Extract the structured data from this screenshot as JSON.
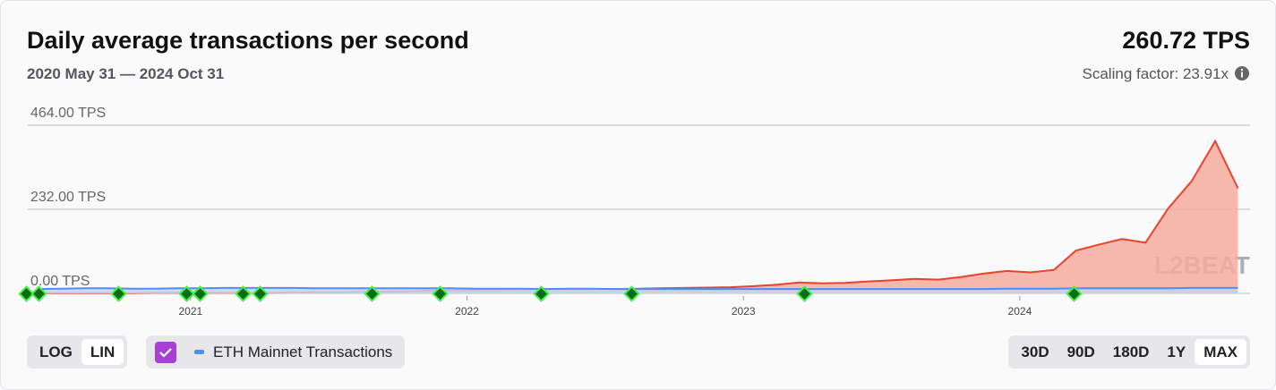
{
  "chart_data": {
    "type": "area",
    "title": "Daily average transactions per second",
    "subtitle": "2020 May 31 — 2024 Oct 31",
    "headline": "260.72 TPS",
    "scaling_label": "Scaling factor: 23.91x",
    "watermark": "L2BEAT",
    "xlim": [
      "2020-05-31",
      "2024-10-31"
    ],
    "xticks": [
      "2021",
      "2022",
      "2023",
      "2024"
    ],
    "ylim": [
      0,
      464
    ],
    "yticks": [
      {
        "value": 0,
        "label": "0.00 TPS"
      },
      {
        "value": 232,
        "label": "232.00 TPS"
      },
      {
        "value": 464,
        "label": "464.00 TPS"
      }
    ],
    "grid": true,
    "x": [
      "2020-06",
      "2020-07",
      "2020-08",
      "2020-09",
      "2020-10",
      "2020-11",
      "2020-12",
      "2021-01",
      "2021-02",
      "2021-03",
      "2021-04",
      "2021-05",
      "2021-06",
      "2021-07",
      "2021-08",
      "2021-09",
      "2021-10",
      "2021-11",
      "2021-12",
      "2022-01",
      "2022-02",
      "2022-03",
      "2022-04",
      "2022-05",
      "2022-06",
      "2022-07",
      "2022-08",
      "2022-09",
      "2022-10",
      "2022-11",
      "2022-12",
      "2023-01",
      "2023-02",
      "2023-03",
      "2023-04",
      "2023-05",
      "2023-06",
      "2023-07",
      "2023-08",
      "2023-09",
      "2023-10",
      "2023-11",
      "2023-12",
      "2024-01",
      "2024-02",
      "2024-03",
      "2024-04",
      "2024-05",
      "2024-06",
      "2024-07",
      "2024-08",
      "2024-09",
      "2024-10"
    ],
    "series": [
      {
        "color": "#e8432b",
        "fill": "#f5aa9e",
        "values": [
          1,
          1,
          1,
          1,
          1,
          2,
          2,
          2,
          2,
          2,
          2,
          3,
          3,
          3,
          4,
          5,
          6,
          8,
          9,
          9,
          10,
          11,
          12,
          11,
          12,
          12,
          13,
          14,
          15,
          16,
          17,
          20,
          24,
          30,
          28,
          29,
          33,
          36,
          40,
          38,
          45,
          55,
          62,
          58,
          65,
          118,
          135,
          150,
          140,
          235,
          310,
          420,
          290
        ]
      },
      {
        "name": "ETH Mainnet Transactions",
        "color": "#4f8ef7",
        "fill": "#c4d3f5",
        "values": [
          12,
          13,
          14,
          14,
          13,
          13,
          14,
          14,
          15,
          15,
          15,
          15,
          14,
          14,
          14,
          14,
          14,
          14,
          14,
          13,
          13,
          13,
          12,
          13,
          13,
          12,
          12,
          12,
          12,
          12,
          12,
          12,
          12,
          12,
          12,
          12,
          12,
          12,
          12,
          12,
          12,
          12,
          13,
          13,
          13,
          14,
          14,
          14,
          14,
          14,
          15,
          15,
          15
        ]
      }
    ]
  },
  "controls": {
    "scale": [
      "LOG",
      "LIN"
    ],
    "active_scale": 1,
    "ranges": [
      "30D",
      "90D",
      "180D",
      "1Y",
      "MAX"
    ],
    "active_range": 4
  }
}
